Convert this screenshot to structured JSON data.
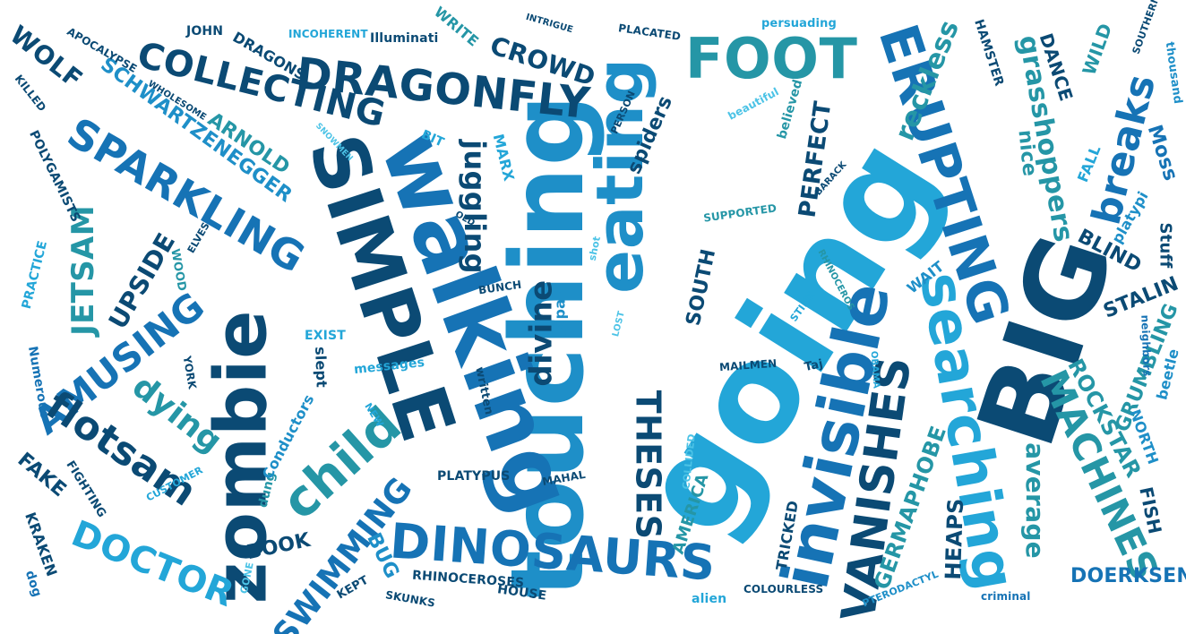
{
  "palette": {
    "c0": "#0b4a74",
    "c1": "#1673b5",
    "c2": "#1e8fc8",
    "c3": "#23a6d8",
    "c4": "#2596a6",
    "c5": "#4cc3e6"
  },
  "words": [
    {
      "text": "touching",
      "color": "c2"
    },
    {
      "text": "going",
      "color": "c3"
    },
    {
      "text": "walking",
      "color": "c1"
    },
    {
      "text": "SIMPLE",
      "color": "c0"
    },
    {
      "text": "BIG",
      "color": "c0"
    },
    {
      "text": "zombie",
      "color": "c0"
    },
    {
      "text": "eating",
      "color": "c2"
    },
    {
      "text": "ERUPTING",
      "color": "c1"
    },
    {
      "text": "FOOT",
      "color": "c4"
    },
    {
      "text": "DRAGONFLY",
      "color": "c0"
    },
    {
      "text": "DINOSAURS",
      "color": "c1"
    },
    {
      "text": "invisible",
      "color": "c1"
    },
    {
      "text": "searching",
      "color": "c3"
    },
    {
      "text": "VANISHES",
      "color": "c0"
    },
    {
      "text": "MACHINES",
      "color": "c4"
    },
    {
      "text": "SPARKLING",
      "color": "c1"
    },
    {
      "text": "COLLECTING",
      "color": "c0"
    },
    {
      "text": "AMUSING",
      "color": "c1"
    },
    {
      "text": "child",
      "color": "c4"
    },
    {
      "text": "flotsam",
      "color": "c0"
    },
    {
      "text": "THESES",
      "color": "c0"
    },
    {
      "text": "juggling",
      "color": "c0"
    },
    {
      "text": "grasshoppers",
      "color": "c4"
    },
    {
      "text": "breaks",
      "color": "c1"
    },
    {
      "text": "reckless",
      "color": "c4"
    },
    {
      "text": "DOCTOR",
      "color": "c3"
    },
    {
      "text": "SWIMMING",
      "color": "c1"
    },
    {
      "text": "SCHWARTZENEGGER",
      "color": "c2"
    },
    {
      "text": "ARNOLD",
      "color": "c4"
    },
    {
      "text": "CROWD",
      "color": "c0"
    },
    {
      "text": "WOLF",
      "color": "c0"
    },
    {
      "text": "JETSAM",
      "color": "c4"
    },
    {
      "text": "UPSIDE",
      "color": "c0"
    },
    {
      "text": "dying",
      "color": "c4"
    },
    {
      "text": "divine",
      "color": "c0"
    },
    {
      "text": "PERFECT",
      "color": "c0"
    },
    {
      "text": "SOUTH",
      "color": "c0"
    },
    {
      "text": "spiders",
      "color": "c0"
    },
    {
      "text": "average",
      "color": "c4"
    },
    {
      "text": "ROCKSTAR",
      "color": "c4"
    },
    {
      "text": "GERMAPHOBE",
      "color": "c4"
    },
    {
      "text": "GRUMBLING",
      "color": "c4"
    },
    {
      "text": "STALIN",
      "color": "c0"
    },
    {
      "text": "BLIND",
      "color": "c0"
    },
    {
      "text": "DANCE",
      "color": "c0"
    },
    {
      "text": "WILD",
      "color": "c4"
    },
    {
      "text": "nice",
      "color": "c4"
    },
    {
      "text": "Moss",
      "color": "c1"
    },
    {
      "text": "platypi",
      "color": "c2"
    },
    {
      "text": "Stuff",
      "color": "c0"
    },
    {
      "text": "FALL",
      "color": "c3"
    },
    {
      "text": "HEAPS",
      "color": "c0"
    },
    {
      "text": "FISH",
      "color": "c0"
    },
    {
      "text": "DOERKSEN",
      "color": "c1"
    },
    {
      "text": "NORTH",
      "color": "c2"
    },
    {
      "text": "beetle",
      "color": "c2"
    },
    {
      "text": "neighbors",
      "color": "c1"
    },
    {
      "text": "HAMSTER",
      "color": "c0"
    },
    {
      "text": "SOUTHERN",
      "color": "c0"
    },
    {
      "text": "thousand",
      "color": "c2"
    },
    {
      "text": "FAKE",
      "color": "c0"
    },
    {
      "text": "KRAKEN",
      "color": "c0"
    },
    {
      "text": "dog",
      "color": "c1"
    },
    {
      "text": "FIGHTING",
      "color": "c0"
    },
    {
      "text": "CUSTOMER",
      "color": "c3"
    },
    {
      "text": "BOOK",
      "color": "c0"
    },
    {
      "text": "dung",
      "color": "c4"
    },
    {
      "text": "Conductors",
      "color": "c2"
    },
    {
      "text": "BUG",
      "color": "c2"
    },
    {
      "text": "KEPT",
      "color": "c0"
    },
    {
      "text": "GONE",
      "color": "c5"
    },
    {
      "text": "SKUNKS",
      "color": "c0"
    },
    {
      "text": "RHINOCEROSES",
      "color": "c0"
    },
    {
      "text": "HOUSE",
      "color": "c0"
    },
    {
      "text": "PLATYPUS",
      "color": "c0"
    },
    {
      "text": "MAHAL",
      "color": "c0"
    },
    {
      "text": "COLLIDED",
      "color": "c5"
    },
    {
      "text": "AMERICA",
      "color": "c4"
    },
    {
      "text": "alien",
      "color": "c3"
    },
    {
      "text": "TRICKED",
      "color": "c0"
    },
    {
      "text": "COLOURLESS",
      "color": "c0"
    },
    {
      "text": "PTERODACTYL",
      "color": "c2"
    },
    {
      "text": "criminal",
      "color": "c1"
    },
    {
      "text": "OBAMA",
      "color": "c3"
    },
    {
      "text": "Taj",
      "color": "c0"
    },
    {
      "text": "MAILMEN",
      "color": "c0"
    },
    {
      "text": "STINK",
      "color": "c3"
    },
    {
      "text": "LOST",
      "color": "c5"
    },
    {
      "text": "RHINOCEROS",
      "color": "c4"
    },
    {
      "text": "WAIT",
      "color": "c2"
    },
    {
      "text": "Japan",
      "color": "c2"
    },
    {
      "text": "BUNCH",
      "color": "c0"
    },
    {
      "text": "messages",
      "color": "c3"
    },
    {
      "text": "written",
      "color": "c0"
    },
    {
      "text": "NEW",
      "color": "c3"
    },
    {
      "text": "slept",
      "color": "c0"
    },
    {
      "text": "EXIST",
      "color": "c3"
    },
    {
      "text": "YORK",
      "color": "c0"
    },
    {
      "text": "Numerous",
      "color": "c1"
    },
    {
      "text": "PRACTICE",
      "color": "c3"
    },
    {
      "text": "WOOD",
      "color": "c4"
    },
    {
      "text": "ELVES",
      "color": "c0"
    },
    {
      "text": "POLYGAMISTS",
      "color": "c0"
    },
    {
      "text": "KILLED",
      "color": "c0"
    },
    {
      "text": "APOCALYPSE",
      "color": "c0"
    },
    {
      "text": "JOHN",
      "color": "c0"
    },
    {
      "text": "DRAGONS",
      "color": "c0"
    },
    {
      "text": "WHOLESOME",
      "color": "c0"
    },
    {
      "text": "SNOWMEN",
      "color": "c5"
    },
    {
      "text": "INCOHERENT",
      "color": "c3"
    },
    {
      "text": "Illuminati",
      "color": "c0"
    },
    {
      "text": "WRITE",
      "color": "c4"
    },
    {
      "text": "INTRIGUE",
      "color": "c0"
    },
    {
      "text": "PLACATED",
      "color": "c0"
    },
    {
      "text": "persuading",
      "color": "c3"
    },
    {
      "text": "MARX",
      "color": "c3"
    },
    {
      "text": "BIT",
      "color": "c3"
    },
    {
      "text": "OLD",
      "color": "c0"
    },
    {
      "text": "shot",
      "color": "c5"
    },
    {
      "text": "SUPPORTED",
      "color": "c4"
    },
    {
      "text": "PERSON",
      "color": "c0"
    },
    {
      "text": "beautiful",
      "color": "c5"
    },
    {
      "text": "believed",
      "color": "c4"
    },
    {
      "text": "BARACK",
      "color": "c0"
    }
  ]
}
